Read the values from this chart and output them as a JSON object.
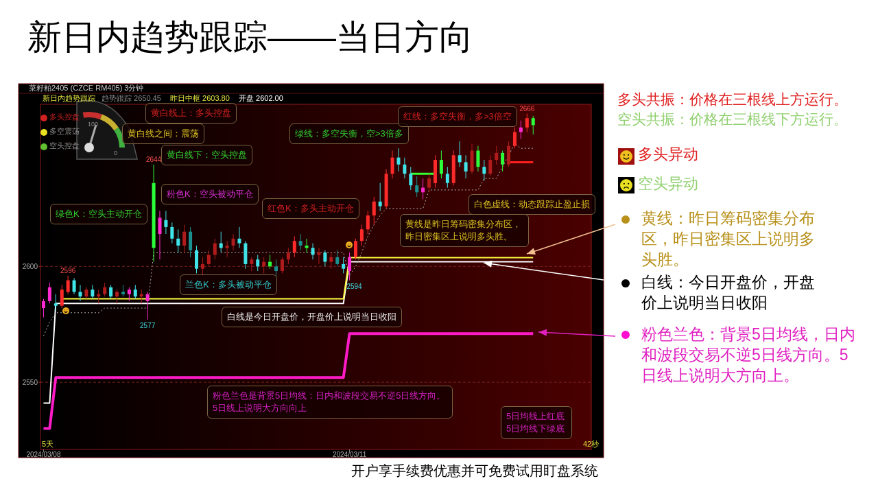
{
  "chart_data": {
    "type": "candlestick",
    "title": "新日内趋势跟踪——当日方向",
    "categories": [
      "2024/03/08",
      null,
      null,
      null,
      null,
      null,
      null,
      null,
      null,
      null,
      null,
      null,
      null,
      null,
      null,
      null,
      null,
      null,
      null,
      null,
      null,
      null,
      null,
      null,
      null,
      null,
      null,
      null,
      null,
      null,
      null,
      null,
      null,
      null,
      null,
      null,
      null,
      null,
      null,
      null,
      null,
      null,
      null,
      null,
      null,
      null,
      null,
      null,
      null,
      null,
      "2024/03/11",
      null,
      null,
      null,
      null,
      null,
      null,
      null,
      null,
      null,
      null,
      null,
      null,
      null,
      null,
      null,
      null,
      null,
      null,
      null,
      null,
      null,
      null,
      null,
      null,
      null,
      null,
      null,
      null,
      null,
      null,
      null,
      null,
      null,
      null,
      null,
      null,
      null,
      null,
      null
    ],
    "ohlc": [
      [
        2582,
        2586,
        2578,
        2585
      ],
      [
        2585,
        2593,
        2584,
        2591
      ],
      [
        2584,
        2588,
        2581,
        2583
      ],
      [
        2583,
        2592,
        2582,
        2590
      ],
      [
        2589,
        2596,
        2588,
        2594
      ],
      [
        2594,
        2595,
        2588,
        2589
      ],
      [
        2589,
        2592,
        2585,
        2587
      ],
      [
        2587,
        2591,
        2586,
        2590
      ],
      [
        2590,
        2592,
        2586,
        2587
      ],
      [
        2587,
        2590,
        2584,
        2588
      ],
      [
        2588,
        2593,
        2587,
        2591
      ],
      [
        2591,
        2592,
        2586,
        2587
      ],
      [
        2587,
        2590,
        2584,
        2589
      ],
      [
        2589,
        2592,
        2587,
        2588
      ],
      [
        2588,
        2591,
        2585,
        2590
      ],
      [
        2590,
        2592,
        2586,
        2587
      ],
      [
        2587,
        2590,
        2584,
        2588
      ],
      [
        2585,
        2589,
        2577,
        2588
      ],
      [
        2636,
        2644,
        2602,
        2608
      ],
      [
        2614,
        2624,
        2603,
        2621
      ],
      [
        2620,
        2624,
        2614,
        2617
      ],
      [
        2617,
        2619,
        2610,
        2612
      ],
      [
        2612,
        2616,
        2606,
        2609
      ],
      [
        2609,
        2618,
        2606,
        2615
      ],
      [
        2615,
        2617,
        2604,
        2607
      ],
      [
        2607,
        2609,
        2597,
        2599
      ],
      [
        2599,
        2604,
        2596,
        2601
      ],
      [
        2601,
        2607,
        2600,
        2605
      ],
      [
        2605,
        2612,
        2603,
        2610
      ],
      [
        2610,
        2615,
        2606,
        2608
      ],
      [
        2608,
        2611,
        2604,
        2609
      ],
      [
        2609,
        2614,
        2607,
        2612
      ],
      [
        2612,
        2617,
        2608,
        2610
      ],
      [
        2610,
        2611,
        2599,
        2601
      ],
      [
        2601,
        2604,
        2598,
        2603
      ],
      [
        2603,
        2605,
        2598,
        2600
      ],
      [
        2600,
        2604,
        2597,
        2602
      ],
      [
        2602,
        2605,
        2599,
        2600
      ],
      [
        2600,
        2603,
        2596,
        2598
      ],
      [
        2598,
        2604,
        2597,
        2603
      ],
      [
        2603,
        2608,
        2601,
        2606
      ],
      [
        2606,
        2613,
        2604,
        2611
      ],
      [
        2611,
        2614,
        2607,
        2609
      ],
      [
        2609,
        2612,
        2606,
        2608
      ],
      [
        2608,
        2610,
        2603,
        2605
      ],
      [
        2605,
        2608,
        2601,
        2606
      ],
      [
        2606,
        2607,
        2600,
        2602
      ],
      [
        2602,
        2606,
        2599,
        2604
      ],
      [
        2604,
        2607,
        2600,
        2601
      ],
      [
        2601,
        2604,
        2597,
        2599
      ],
      [
        2598,
        2606,
        2594,
        2604
      ],
      [
        2604,
        2612,
        2603,
        2611
      ],
      [
        2611,
        2618,
        2609,
        2616
      ],
      [
        2616,
        2624,
        2614,
        2622
      ],
      [
        2622,
        2630,
        2618,
        2628
      ],
      [
        2628,
        2636,
        2624,
        2626
      ],
      [
        2626,
        2642,
        2625,
        2640
      ],
      [
        2640,
        2650,
        2638,
        2647
      ],
      [
        2647,
        2651,
        2641,
        2644
      ],
      [
        2644,
        2647,
        2638,
        2640
      ],
      [
        2640,
        2643,
        2633,
        2635
      ],
      [
        2635,
        2639,
        2630,
        2632
      ],
      [
        2632,
        2638,
        2629,
        2634
      ],
      [
        2634,
        2640,
        2632,
        2638
      ],
      [
        2636,
        2648,
        2634,
        2646
      ],
      [
        2646,
        2650,
        2638,
        2640
      ],
      [
        2640,
        2643,
        2634,
        2636
      ],
      [
        2636,
        2650,
        2635,
        2648
      ],
      [
        2648,
        2654,
        2643,
        2645
      ],
      [
        2645,
        2648,
        2638,
        2641
      ],
      [
        2641,
        2653,
        2640,
        2650
      ],
      [
        2650,
        2652,
        2641,
        2643
      ],
      [
        2643,
        2646,
        2637,
        2640
      ],
      [
        2640,
        2648,
        2639,
        2646
      ],
      [
        2646,
        2652,
        2644,
        2649
      ],
      [
        2649,
        2650,
        2641,
        2644
      ],
      [
        2644,
        2654,
        2643,
        2652
      ],
      [
        2652,
        2660,
        2651,
        2658
      ],
      [
        2658,
        2663,
        2655,
        2660
      ],
      [
        2660,
        2666,
        2658,
        2664
      ],
      [
        2664,
        2665,
        2657,
        2661
      ],
      null,
      null,
      null,
      null,
      null,
      null,
      null,
      null,
      null
    ],
    "colors": [
      "#ff2ad0",
      "#ff2ad0",
      "#3fe3e8",
      "#ff2a2a",
      "#ff2a2a",
      "#3fe3e8",
      "#3fe3e8",
      "#b01c1c",
      "#3fe3e8",
      "#b01c1c",
      "#b01c1c",
      "#3fe3e8",
      "#b01c1c",
      "#1a9090",
      "#ff2ad0",
      "#3fe3e8",
      "#b01c1c",
      "#ff2ad0",
      "#2bff3a",
      "#ff2ad0",
      "#3fe3e8",
      "#3fe3e8",
      "#3fe3e8",
      "#b01c1c",
      "#1a9090",
      "#3fe3e8",
      "#b01c1c",
      "#b01c1c",
      "#b01c1c",
      "#3fe3e8",
      "#b01c1c",
      "#b01c1c",
      "#3fe3e8",
      "#3fe3e8",
      "#b01c1c",
      "#3fe3e8",
      "#b01c1c",
      "#2bff3a",
      "#1a9090",
      "#b01c1c",
      "#b01c1c",
      "#ff2a2a",
      "#1a9090",
      "#2bff3a",
      "#3fe3e8",
      "#b01c1c",
      "#3fe3e8",
      "#b01c1c",
      "#1a9090",
      "#3fe3e8",
      "#ff2ad0",
      "#ff2a2a",
      "#ff2a2a",
      "#ff2a2a",
      "#ff2a2a",
      "#3fe3e8",
      "#ff2a2a",
      "#ff2a2a",
      "#3fe3e8",
      "#3fe3e8",
      "#3fe3e8",
      "#1a9090",
      "#ff2ad0",
      "#b01c1c",
      "#ff2a2a",
      "#2bff3a",
      "#3fe3e8",
      "#ff2a2a",
      "#3fe3e8",
      "#3fe3e8",
      "#b01c1c",
      "#2bff3a",
      "#3fe3e8",
      "#b01c1c",
      "#b01c1c",
      "#2bff3a",
      "#b01c1c",
      "#ff2a2a",
      "#ff2ad0",
      "#ff2a2a",
      "#2bff3a",
      null,
      null,
      null,
      null,
      null,
      null,
      null,
      null,
      null
    ],
    "series": [
      {
        "type": "line",
        "color": "#ffffff",
        "values": [
          2541,
          2541,
          2584,
          2584,
          2584,
          2584,
          2584,
          2584,
          2584,
          2584,
          2584,
          2584,
          2584,
          2584,
          2584,
          2584,
          2584,
          2584,
          2584,
          2584,
          2584,
          2584,
          2584,
          2584,
          2584,
          2584,
          2584,
          2584,
          2584,
          2584,
          2584,
          2584,
          2584,
          2584,
          2584,
          2584,
          2584,
          2584,
          2584,
          2584,
          2584,
          2584,
          2584,
          2584,
          2584,
          2584,
          2584,
          2584,
          2584,
          2584,
          2602,
          2602,
          2602,
          2602,
          2602,
          2602,
          2602,
          2602,
          2602,
          2602,
          2602,
          2602,
          2602,
          2602,
          2602,
          2602,
          2602,
          2602,
          2602,
          2602,
          2602,
          2602,
          2602,
          2602,
          2602,
          2602,
          2602,
          2602,
          2602,
          2602,
          2602,
          null,
          null,
          null,
          null,
          null,
          null,
          null,
          null,
          null
        ]
      },
      {
        "type": "line",
        "color": "#ffff40",
        "values": [
          null,
          null,
          null,
          2586,
          2586,
          2586,
          2586,
          2586,
          2586,
          2586,
          2586,
          2586,
          2586,
          2586,
          2586,
          2586,
          2586,
          2586,
          2586,
          2586,
          2586,
          2586,
          2586,
          2586,
          2586,
          2586,
          2586,
          2586,
          2586,
          2586,
          2586,
          2586,
          2586,
          2586,
          2586,
          2586,
          2586,
          2586,
          2586,
          2586,
          2586,
          2586,
          2586,
          2586,
          2586,
          2586,
          2586,
          2586,
          2586,
          2586,
          2603.8,
          2603.8,
          2603.8,
          2603.8,
          2603.8,
          2603.8,
          2603.8,
          2603.8,
          2603.8,
          2603.8,
          2603.8,
          2603.8,
          2603.8,
          2603.8,
          2603.8,
          2603.8,
          2603.8,
          2603.8,
          2603.8,
          2603.8,
          2603.8,
          2603.8,
          2603.8,
          2603.8,
          2603.8,
          2603.8,
          2603.8,
          2603.8,
          2603.8,
          2603.8,
          2603.8,
          null,
          null,
          null,
          null,
          null,
          null,
          null,
          null,
          null
        ]
      },
      {
        "type": "line",
        "color": "#ff1cc8",
        "values": [
          2530,
          2530,
          2552,
          2552,
          2552,
          2552,
          2552,
          2552,
          2552,
          2552,
          2552,
          2552,
          2552,
          2552,
          2552,
          2552,
          2552,
          2552,
          2552,
          2552,
          2552,
          2552,
          2552,
          2552,
          2552,
          2552,
          2552,
          2552,
          2552,
          2552,
          2552,
          2552,
          2552,
          2552,
          2552,
          2552,
          2552,
          2552,
          2552,
          2552,
          2552,
          2552,
          2552,
          2552,
          2552,
          2552,
          2552,
          2552,
          2552,
          2552,
          2571,
          2571,
          2571,
          2571,
          2571,
          2571,
          2571,
          2571,
          2571,
          2571,
          2571,
          2571,
          2571,
          2571,
          2571,
          2571,
          2571,
          2571,
          2571,
          2571,
          2571,
          2571,
          2571,
          2571,
          2571,
          2571,
          2571,
          2571,
          2571,
          2571,
          2571,
          null,
          null,
          null,
          null,
          null,
          null,
          null,
          null,
          null
        ]
      },
      {
        "type": "line",
        "color": "#33ff33",
        "values": [
          null,
          null,
          null,
          null,
          null,
          null,
          null,
          null,
          null,
          null,
          null,
          null,
          null,
          null,
          null,
          null,
          null,
          null,
          null,
          null,
          null,
          null,
          null,
          null,
          null,
          null,
          null,
          null,
          null,
          null,
          null,
          null,
          null,
          null,
          null,
          null,
          null,
          null,
          null,
          null,
          null,
          null,
          null,
          null,
          null,
          null,
          null,
          null,
          null,
          null,
          null,
          null,
          null,
          null,
          null,
          null,
          null,
          null,
          null,
          null,
          2640,
          2640,
          2640,
          2640,
          2640,
          null,
          null,
          null,
          null,
          null,
          null,
          null,
          null,
          null,
          null,
          null,
          null,
          null,
          null,
          null,
          null,
          null,
          null,
          null,
          null,
          null,
          null,
          null,
          null,
          null
        ]
      },
      {
        "type": "line",
        "color": "#ff2020",
        "values": [
          null,
          null,
          null,
          null,
          null,
          null,
          null,
          null,
          null,
          null,
          null,
          null,
          null,
          null,
          null,
          null,
          null,
          null,
          null,
          null,
          null,
          null,
          null,
          null,
          null,
          null,
          null,
          null,
          null,
          null,
          null,
          null,
          null,
          null,
          null,
          null,
          null,
          null,
          null,
          null,
          null,
          null,
          null,
          null,
          null,
          null,
          null,
          null,
          null,
          null,
          null,
          null,
          null,
          null,
          null,
          null,
          null,
          null,
          null,
          null,
          null,
          null,
          null,
          null,
          null,
          null,
          null,
          null,
          null,
          null,
          null,
          null,
          null,
          null,
          null,
          null,
          2645,
          2645,
          2645,
          2645,
          2645,
          null,
          null,
          null,
          null,
          null,
          null,
          null,
          null,
          null
        ]
      },
      {
        "type": "line",
        "color": "#b0b0b0",
        "line_style": "dotted",
        "values": [
          2570,
          2576,
          2580,
          2580,
          2580,
          2580,
          2580,
          2580,
          2580,
          2580,
          2582,
          2582,
          2582,
          2582,
          2582,
          2582,
          2582,
          2582,
          2606,
          2606,
          2606,
          2606,
          2606,
          2606,
          2606,
          2606,
          2606,
          2606,
          null,
          2606,
          2606,
          2606,
          2606,
          2606,
          2606,
          2606,
          2606,
          2606,
          2606,
          2606,
          2606,
          2606,
          2606,
          2606,
          2606,
          2606,
          2606,
          2606,
          2606,
          2606,
          2596,
          2600,
          2606,
          2613,
          2618,
          2622,
          2625,
          2625,
          2625,
          2625,
          2625,
          2625,
          2625,
          2633,
          2633,
          2633,
          2633,
          2633,
          2633,
          2633,
          2633,
          2633,
          2638,
          2638,
          2638,
          2643,
          2648,
          2653,
          2651,
          2651,
          2651,
          null,
          null,
          null,
          null,
          null,
          null,
          null,
          null,
          null
        ]
      }
    ],
    "ylim": [
      2521,
      2670
    ],
    "yticks": [
      2550,
      2600
    ],
    "grid": "y",
    "annotations": [
      "菜籽粕2405 (CZCE RM405)  3分钟",
      "新日内趋势跟踪",
      "趋势跟踪 2650.45",
      "昨日中枢 2603.80",
      "开盘 2602.00",
      "多头控盘",
      "多空震荡",
      "空头控盘",
      "100",
      "0",
      "黄白线上：多头控盘",
      "黄白线之间：震荡",
      "黄白线下：空头控盘",
      "绿色K：空头主动开仓",
      "粉色K：空头被动平仓",
      "红色K：多头主动开仓",
      "兰色K：多头被动平仓",
      "绿线：多空失衡，空>3倍多",
      "红线：多空失衡，多>3倍空",
      "白色虚线：动态跟踪止盈止损",
      "黄线是昨日筹码密集分布区，昨日密集区上说明多头胜。",
      "白线是今日开盘价，开盘价上说明当日收阳",
      "粉色兰色是背景5日均线：日内和波段交易不逆5日线方向。5日线上说明大方向向上",
      "5日均线上红底5日均线下绿底",
      "5天",
      "42秒",
      "多头共振：价格在三根线上方运行。",
      "空头共振：价格在三根线下方运行。",
      "多头异动",
      "空头异动",
      "黄线：昨日筹码密集分布区，昨日密集区上说明多头胜。",
      "白线：今日开盘价，开盘价上说明当日收阳",
      "粉色兰色：背景5日均线，日内和波段交易不逆5日线方向。5日线上说明大方向上。",
      "开户享手续费优惠并可免费试用盯盘系统",
      "2596",
      "2644",
      "2577",
      "2594",
      "2666"
    ]
  }
}
